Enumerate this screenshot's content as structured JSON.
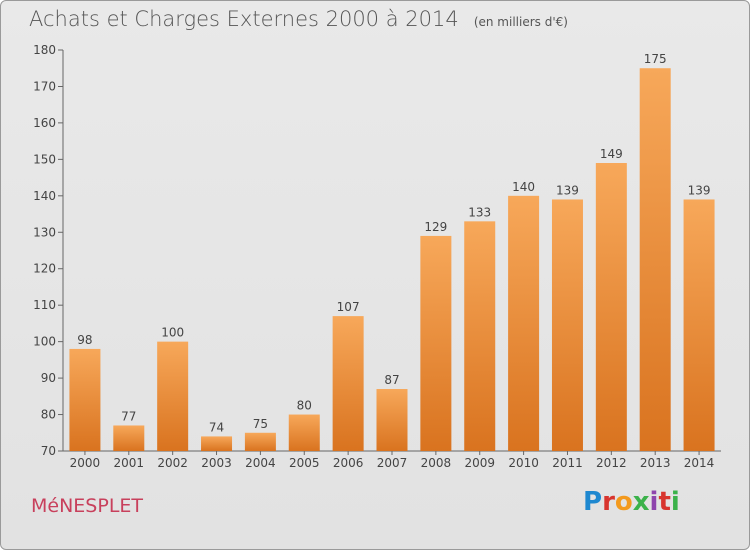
{
  "header": {
    "title": "Achats et Charges Externes 2000 à 2014",
    "subtitle": "(en milliers d'€)"
  },
  "commune": "MéNESPLET",
  "logo": {
    "text": "Proxiti",
    "colors": [
      "#1e88d0",
      "#f39a1e",
      "#3bb24a",
      "#d8352e",
      "#8e44ad"
    ]
  },
  "chart_data": {
    "type": "bar",
    "title": "Achats et Charges Externes 2000 à 2014",
    "subtitle": "(en milliers d'€)",
    "xlabel": "",
    "ylabel": "",
    "categories": [
      "2000",
      "2001",
      "2002",
      "2003",
      "2004",
      "2005",
      "2006",
      "2007",
      "2008",
      "2009",
      "2010",
      "2011",
      "2012",
      "2013",
      "2014"
    ],
    "values": [
      98,
      77,
      100,
      74,
      75,
      80,
      107,
      87,
      129,
      133,
      140,
      139,
      149,
      175,
      139
    ],
    "ylim": [
      70,
      180
    ],
    "yticks": [
      70,
      80,
      90,
      100,
      110,
      120,
      130,
      140,
      150,
      160,
      170,
      180
    ],
    "grid": false,
    "legend": "none",
    "bar_color_top": "#f7a85a",
    "bar_color_bottom": "#d9731f",
    "data_labels": true
  }
}
